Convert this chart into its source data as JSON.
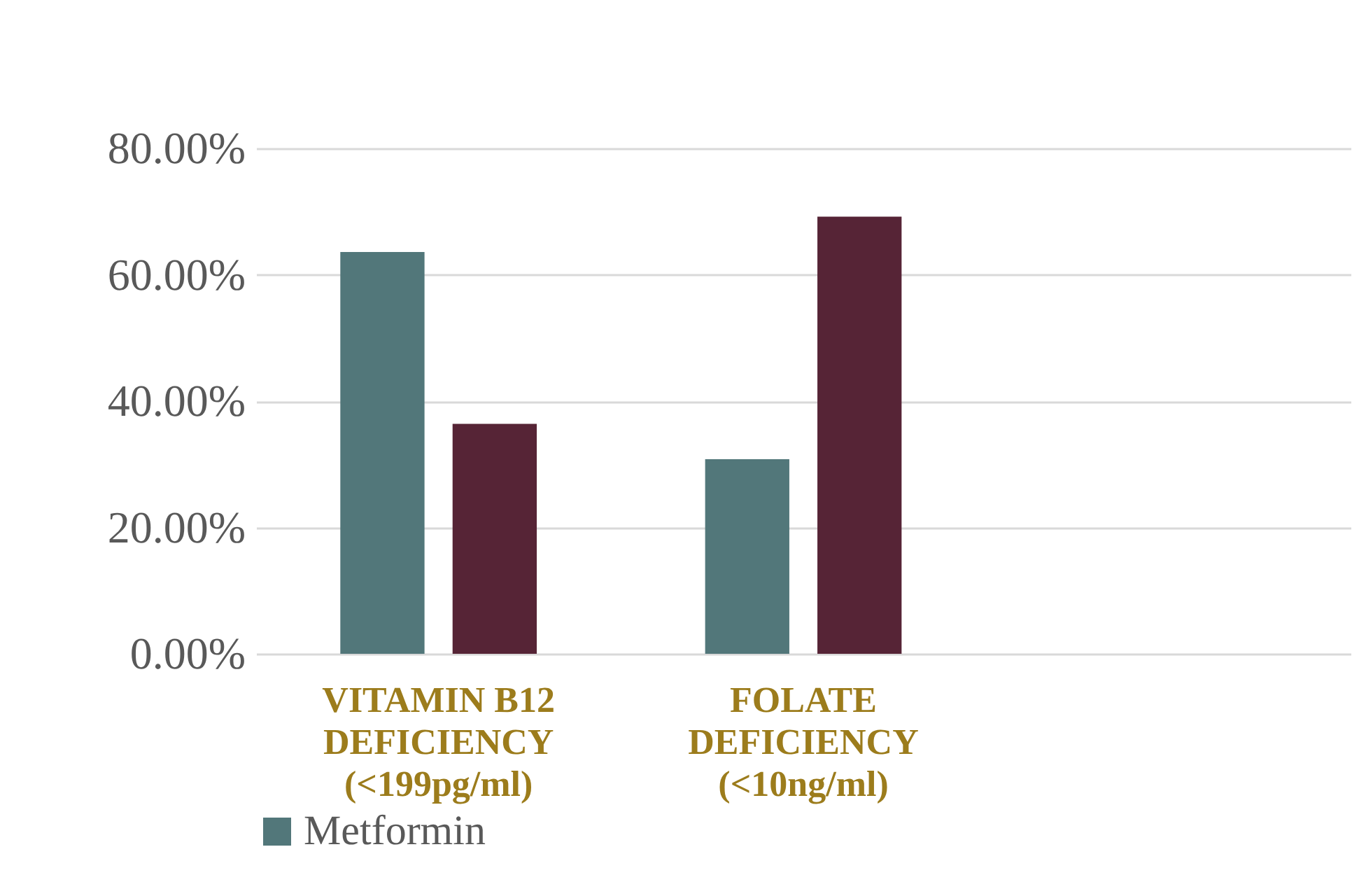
{
  "chart_data": {
    "type": "bar",
    "categories": [
      "VITAMIN B12 DEFICIENCY (<199pg/ml)",
      "FOLATE DEFICIENCY (<10ng/ml)",
      null
    ],
    "series": [
      {
        "name": "Metformin",
        "color": "#52777a",
        "values": [
          63.6,
          30.8,
          null
        ]
      },
      {
        "color": "#562436",
        "values": [
          36.4,
          69.2,
          null
        ]
      }
    ],
    "ylim": [
      0,
      80
    ],
    "yticks": [
      {
        "value": 0,
        "label": "0.00%"
      },
      {
        "value": 20,
        "label": "20.00%"
      },
      {
        "value": 40,
        "label": "40.00%"
      },
      {
        "value": 60,
        "label": "60.00%"
      },
      {
        "value": 80,
        "label": "80.00%"
      }
    ],
    "grid": "y",
    "legend": "bottom"
  }
}
